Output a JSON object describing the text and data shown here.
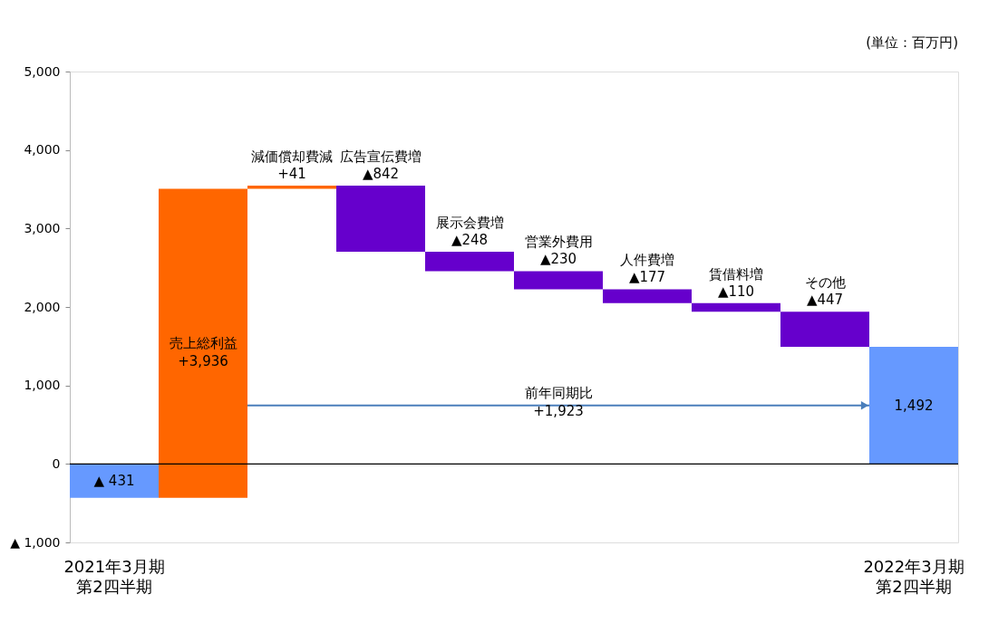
{
  "chart_data": {
    "type": "bar",
    "categories": [
      "2021年3月期第2四半期",
      null,
      null,
      null,
      null,
      null,
      null,
      null,
      null,
      "2022年3月期第2四半期"
    ],
    "values": [
      -431,
      3936,
      41,
      -842,
      -248,
      -230,
      -177,
      -110,
      -447,
      1492
    ],
    "base": [
      0,
      -431,
      3505,
      3546,
      2704,
      2456,
      2226,
      2049,
      1939,
      0
    ],
    "colors": [
      "#6699ff",
      "#ff6600",
      "#ff6600",
      "#6600cc",
      "#6600cc",
      "#6600cc",
      "#6600cc",
      "#6600cc",
      "#6600cc",
      "#6699ff"
    ],
    "value_labels": [
      "▲ 431",
      "売上総利益\n+3,936",
      "減価償却費減\n+41",
      "広告宣伝費増\n▲842",
      "展示会費増\n▲248",
      "営業外費用\n▲230",
      "人件費増\n▲177",
      "賃借料増\n▲110",
      "その他\n▲447",
      "1,492"
    ],
    "ylim": [
      -1000,
      5000
    ],
    "yticks": [
      {
        "value": -1000,
        "label": "▲ 1,000"
      },
      0,
      {
        "value": 1000,
        "label": "1,000"
      },
      {
        "value": 2000,
        "label": "2,000"
      },
      {
        "value": 3000,
        "label": "3,000"
      },
      {
        "value": 4000,
        "label": "4,000"
      },
      {
        "value": 5000,
        "label": "5,000"
      }
    ],
    "ref_lines": [
      {
        "axis": "y",
        "value": 0,
        "label": null,
        "color": "#000000"
      }
    ],
    "annotations": [
      "(単位：百万円)",
      "前年同期比\n+1,923"
    ],
    "grid": false
  }
}
